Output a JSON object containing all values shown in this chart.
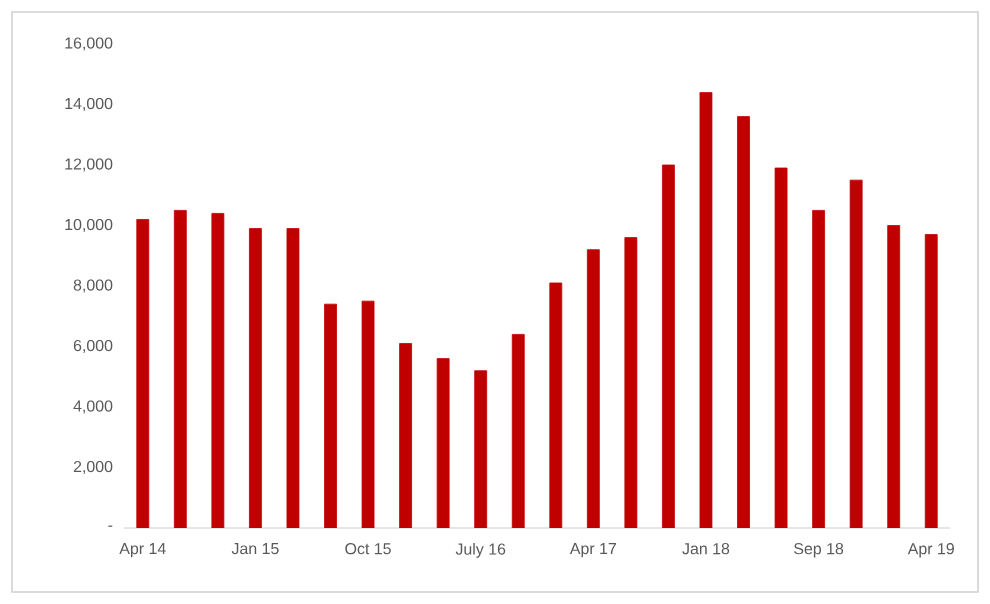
{
  "chart_data": {
    "type": "bar",
    "categories": [
      "Apr 14",
      null,
      null,
      "Jan 15",
      null,
      null,
      "Oct 15",
      null,
      null,
      "July 16",
      null,
      null,
      "Apr 17",
      null,
      null,
      "Jan 18",
      null,
      null,
      "Sep 18",
      null,
      null,
      "Apr 19"
    ],
    "values": [
      10200,
      10500,
      10400,
      9900,
      9900,
      7400,
      7500,
      6100,
      5600,
      5200,
      6400,
      8100,
      9200,
      9600,
      12000,
      14400,
      13600,
      11900,
      10500,
      11500,
      10000,
      9700
    ],
    "color": "#c00000",
    "ylim": [
      0,
      16000
    ],
    "yticks": [
      {
        "value": 0,
        "label": "-"
      },
      {
        "value": 2000,
        "label": "2,000"
      },
      {
        "value": 4000,
        "label": "4,000"
      },
      {
        "value": 6000,
        "label": "6,000"
      },
      {
        "value": 8000,
        "label": "8,000"
      },
      {
        "value": 10000,
        "label": "10,000"
      },
      {
        "value": 12000,
        "label": "12,000"
      },
      {
        "value": 14000,
        "label": "14,000"
      },
      {
        "value": 16000,
        "label": "16,000"
      }
    ]
  }
}
